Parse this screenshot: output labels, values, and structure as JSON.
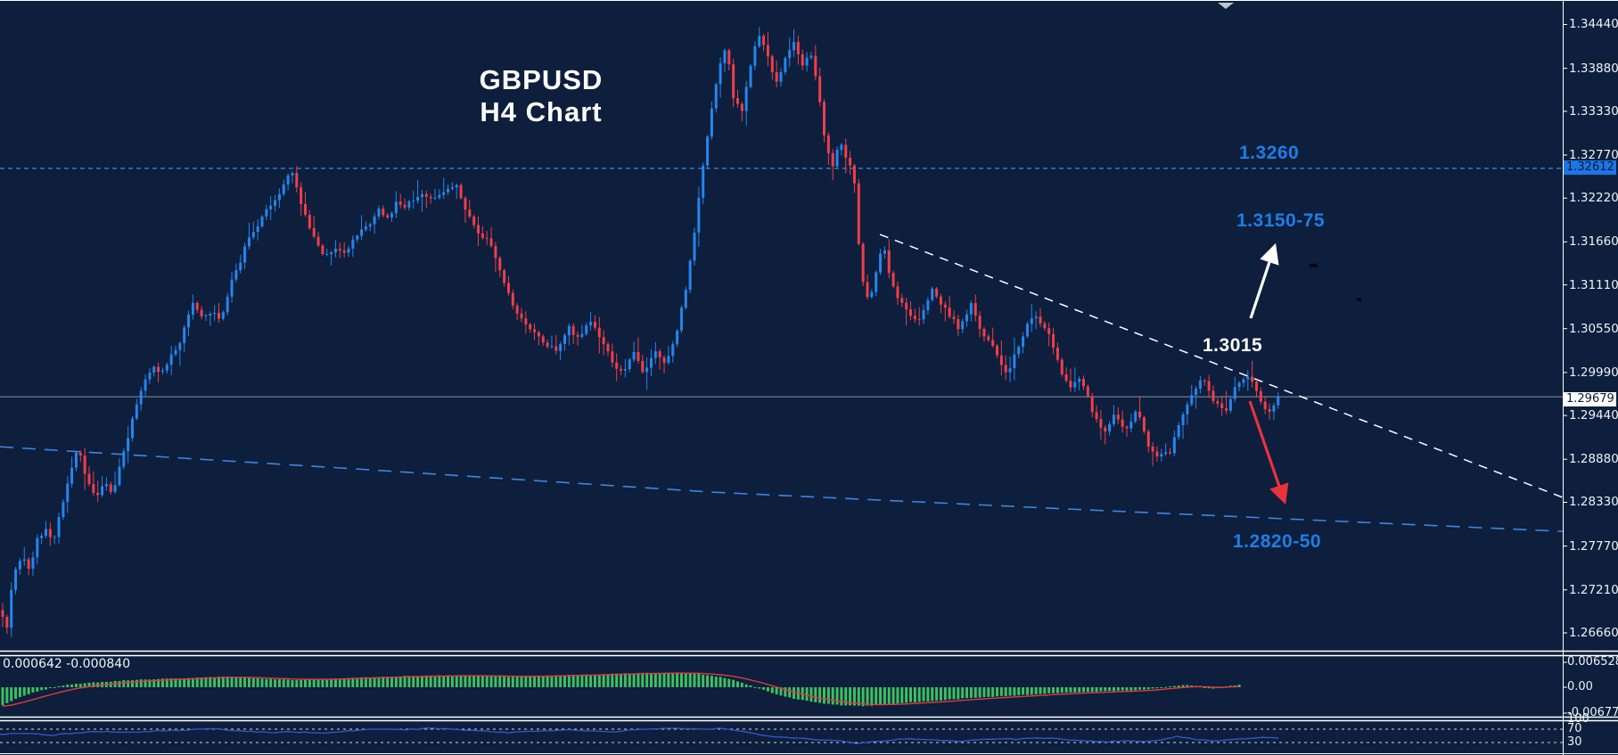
{
  "title": {
    "line1": "GBPUSD",
    "line2": "H4 Chart"
  },
  "annotations": {
    "resistance": "1.3260",
    "target_up": "1.3150-75",
    "pivot": "1.3015",
    "target_down": "1.2820-50"
  },
  "price_axis": {
    "ticks": [
      "1.34440",
      "1.33880",
      "1.33330",
      "1.32770",
      "1.32220",
      "1.31660",
      "1.31110",
      "1.30550",
      "1.29990",
      "1.29440",
      "1.28880",
      "1.28330",
      "1.27770",
      "1.27210",
      "1.26660"
    ],
    "tick_values": [
      1.3444,
      1.3388,
      1.3333,
      1.3277,
      1.3222,
      1.3166,
      1.3111,
      1.3055,
      1.2999,
      1.2944,
      1.2888,
      1.2833,
      1.2777,
      1.2721,
      1.2666
    ],
    "tag_resistance": "1.32612",
    "tag_resistance_value": 1.32612,
    "tag_current": "1.29679",
    "tag_current_value": 1.29679
  },
  "macd_panel": {
    "values_label": "0.000642 -0.000840",
    "axis_labels": [
      "0.006528",
      "0.00",
      "-0.006775"
    ],
    "axis_values": [
      0.006528,
      0.0,
      -0.006775
    ]
  },
  "oscillator_panel": {
    "axis_labels": [
      "100",
      "70",
      "30"
    ],
    "axis_values": [
      100,
      70,
      30
    ]
  },
  "colors": {
    "background": "#0d1f3c",
    "candle_up": "#2585ee",
    "candle_down": "#ef3e4a",
    "macd_bar": "#3dc05f",
    "macd_signal": "#e0393f",
    "oscillator_line": "#3a55cf",
    "accent_blue": "#1d7ee8",
    "ma_dashed": "#3d85e0",
    "resistance_dashed": "#3d85e0",
    "current_price_line": "#8a93a5",
    "trendline": "#ffffff",
    "arrow_up": "#ffffff",
    "arrow_down": "#e8323c",
    "separator": "#ffffff",
    "axis_text": "#eef2f6"
  },
  "chart_data": [
    {
      "type": "candlestick",
      "title": "GBPUSD H4 Chart",
      "symbol": "GBPUSD",
      "timeframe": "H4",
      "ylim": [
        1.26432,
        1.34753
      ],
      "current_close": 1.29679,
      "resistance_level": 1.326,
      "legend_position": "none",
      "close_path": [
        [
          0,
          1.2695
        ],
        [
          8,
          1.2672
        ],
        [
          15,
          1.2745
        ],
        [
          25,
          1.2762
        ],
        [
          33,
          1.2748
        ],
        [
          42,
          1.2786
        ],
        [
          52,
          1.2801
        ],
        [
          60,
          1.2783
        ],
        [
          68,
          1.2822
        ],
        [
          78,
          1.2868
        ],
        [
          88,
          1.2906
        ],
        [
          97,
          1.2863
        ],
        [
          107,
          1.2839
        ],
        [
          117,
          1.2859
        ],
        [
          127,
          1.2843
        ],
        [
          137,
          1.2891
        ],
        [
          147,
          1.2931
        ],
        [
          155,
          1.2966
        ],
        [
          163,
          1.2991
        ],
        [
          172,
          1.3006
        ],
        [
          182,
          1.2999
        ],
        [
          192,
          1.3021
        ],
        [
          202,
          1.3036
        ],
        [
          210,
          1.3071
        ],
        [
          218,
          1.3089
        ],
        [
          228,
          1.3066
        ],
        [
          238,
          1.3079
        ],
        [
          248,
          1.3066
        ],
        [
          258,
          1.3111
        ],
        [
          268,
          1.3136
        ],
        [
          278,
          1.3169
        ],
        [
          288,
          1.3186
        ],
        [
          298,
          1.3204
        ],
        [
          308,
          1.3216
        ],
        [
          318,
          1.3241
        ],
        [
          328,
          1.3256
        ],
        [
          336,
          1.3223
        ],
        [
          345,
          1.3191
        ],
        [
          355,
          1.3169
        ],
        [
          365,
          1.3146
        ],
        [
          375,
          1.3159
        ],
        [
          385,
          1.3151
        ],
        [
          395,
          1.3166
        ],
        [
          405,
          1.3181
        ],
        [
          415,
          1.3191
        ],
        [
          425,
          1.3206
        ],
        [
          435,
          1.3196
        ],
        [
          445,
          1.3216
        ],
        [
          455,
          1.3211
        ],
        [
          465,
          1.3223
        ],
        [
          475,
          1.3229
        ],
        [
          487,
          1.3219
        ],
        [
          500,
          1.3233
        ],
        [
          512,
          1.3239
        ],
        [
          525,
          1.3201
        ],
        [
          538,
          1.3176
        ],
        [
          550,
          1.3166
        ],
        [
          562,
          1.3126
        ],
        [
          575,
          1.3086
        ],
        [
          588,
          1.3061
        ],
        [
          600,
          1.3049
        ],
        [
          612,
          1.3033
        ],
        [
          625,
          1.3029
        ],
        [
          638,
          1.3056
        ],
        [
          650,
          1.3039
        ],
        [
          662,
          1.3066
        ],
        [
          675,
          1.3041
        ],
        [
          688,
          1.3009
        ],
        [
          700,
          1.3001
        ],
        [
          710,
          1.3026
        ],
        [
          722,
          1.2999
        ],
        [
          735,
          1.3029
        ],
        [
          747,
          1.3009
        ],
        [
          760,
          1.3056
        ],
        [
          772,
          1.3121
        ],
        [
          785,
          1.3231
        ],
        [
          797,
          1.3331
        ],
        [
          808,
          1.3396
        ],
        [
          815,
          1.3421
        ],
        [
          823,
          1.3346
        ],
        [
          832,
          1.3333
        ],
        [
          842,
          1.3391
        ],
        [
          850,
          1.3433
        ],
        [
          860,
          1.3406
        ],
        [
          870,
          1.3366
        ],
        [
          880,
          1.3396
        ],
        [
          890,
          1.3421
        ],
        [
          900,
          1.3393
        ],
        [
          910,
          1.3406
        ],
        [
          918,
          1.3356
        ],
        [
          926,
          1.3291
        ],
        [
          934,
          1.3263
        ],
        [
          942,
          1.3296
        ],
        [
          950,
          1.3271
        ],
        [
          958,
          1.3249
        ],
        [
          966,
          1.3121
        ],
        [
          975,
          1.3086
        ],
        [
          984,
          1.3136
        ],
        [
          990,
          1.3166
        ],
        [
          1000,
          1.3111
        ],
        [
          1015,
          1.3081
        ],
        [
          1030,
          1.3061
        ],
        [
          1045,
          1.3106
        ],
        [
          1060,
          1.3081
        ],
        [
          1075,
          1.3056
        ],
        [
          1090,
          1.3086
        ],
        [
          1100,
          1.3051
        ],
        [
          1115,
          1.3031
        ],
        [
          1130,
          1.2996
        ],
        [
          1145,
          1.3041
        ],
        [
          1160,
          1.3076
        ],
        [
          1175,
          1.3051
        ],
        [
          1190,
          1.3001
        ],
        [
          1200,
          1.2976
        ],
        [
          1212,
          1.2996
        ],
        [
          1225,
          1.2951
        ],
        [
          1238,
          1.2921
        ],
        [
          1250,
          1.2946
        ],
        [
          1262,
          1.2926
        ],
        [
          1275,
          1.2951
        ],
        [
          1288,
          1.2906
        ],
        [
          1300,
          1.2891
        ],
        [
          1312,
          1.2896
        ],
        [
          1325,
          1.2941
        ],
        [
          1338,
          1.2971
        ],
        [
          1350,
          1.2994
        ],
        [
          1362,
          1.2961
        ],
        [
          1375,
          1.2946
        ],
        [
          1388,
          1.2986
        ],
        [
          1400,
          1.2996
        ],
        [
          1412,
          1.2966
        ],
        [
          1425,
          1.2946
        ],
        [
          1435,
          1.29679
        ]
      ],
      "ma_dashed_path": [
        [
          0,
          1.2904
        ],
        [
          400,
          1.28756
        ],
        [
          800,
          1.28459
        ],
        [
          1200,
          1.28243
        ],
        [
          1753,
          1.27958
        ]
      ],
      "trendline_path": [
        [
          987,
          1.31755
        ],
        [
          1753,
          1.28392
        ]
      ]
    },
    {
      "type": "bar",
      "name": "MACD",
      "current_macd": 0.000642,
      "current_signal": -0.00084,
      "ylim": [
        -0.0077,
        0.00816
      ],
      "macd_waypoints": [
        [
          0,
          -0.005
        ],
        [
          20,
          -0.0028
        ],
        [
          40,
          -0.0012
        ],
        [
          60,
          0.0
        ],
        [
          80,
          0.0008
        ],
        [
          110,
          0.0013
        ],
        [
          140,
          0.0018
        ],
        [
          170,
          0.0021
        ],
        [
          200,
          0.0023
        ],
        [
          230,
          0.0026
        ],
        [
          250,
          0.0028
        ],
        [
          270,
          0.0026
        ],
        [
          300,
          0.0022
        ],
        [
          330,
          0.0019
        ],
        [
          360,
          0.0021
        ],
        [
          390,
          0.0024
        ],
        [
          420,
          0.0027
        ],
        [
          450,
          0.0029
        ],
        [
          480,
          0.003
        ],
        [
          510,
          0.0031
        ],
        [
          540,
          0.003
        ],
        [
          570,
          0.0028
        ],
        [
          600,
          0.0029
        ],
        [
          630,
          0.0031
        ],
        [
          660,
          0.0033
        ],
        [
          690,
          0.0035
        ],
        [
          720,
          0.0037
        ],
        [
          750,
          0.0038
        ],
        [
          780,
          0.0036
        ],
        [
          800,
          0.003
        ],
        [
          820,
          0.0022
        ],
        [
          835,
          0.001
        ],
        [
          850,
          -0.0002
        ],
        [
          870,
          -0.0018
        ],
        [
          890,
          -0.003
        ],
        [
          910,
          -0.0038
        ],
        [
          930,
          -0.0044
        ],
        [
          950,
          -0.0048
        ],
        [
          970,
          -0.0049
        ],
        [
          990,
          -0.0046
        ],
        [
          1010,
          -0.0042
        ],
        [
          1030,
          -0.0038
        ],
        [
          1060,
          -0.0033
        ],
        [
          1090,
          -0.0028
        ],
        [
          1120,
          -0.0024
        ],
        [
          1150,
          -0.002
        ],
        [
          1180,
          -0.0016
        ],
        [
          1210,
          -0.0013
        ],
        [
          1240,
          -0.0011
        ],
        [
          1270,
          -0.0008
        ],
        [
          1290,
          -0.0005
        ],
        [
          1310,
          0.0002
        ],
        [
          1330,
          0.0006
        ],
        [
          1345,
          0.0004
        ],
        [
          1360,
          -0.0004
        ],
        [
          1375,
          0.0002
        ],
        [
          1390,
          0.00064
        ]
      ]
    },
    {
      "type": "line",
      "name": "oscillator",
      "levels": [
        100,
        70,
        30
      ],
      "waypoints": [
        [
          0,
          55
        ],
        [
          30,
          58
        ],
        [
          60,
          52
        ],
        [
          90,
          60
        ],
        [
          120,
          63
        ],
        [
          150,
          60
        ],
        [
          180,
          65
        ],
        [
          210,
          68
        ],
        [
          240,
          71
        ],
        [
          270,
          65
        ],
        [
          300,
          60
        ],
        [
          330,
          62
        ],
        [
          360,
          58
        ],
        [
          390,
          65
        ],
        [
          420,
          70
        ],
        [
          450,
          68
        ],
        [
          480,
          72
        ],
        [
          510,
          70
        ],
        [
          540,
          65
        ],
        [
          570,
          60
        ],
        [
          600,
          63
        ],
        [
          630,
          68
        ],
        [
          660,
          65
        ],
        [
          690,
          62
        ],
        [
          720,
          70
        ],
        [
          750,
          72
        ],
        [
          780,
          70
        ],
        [
          810,
          72
        ],
        [
          840,
          60
        ],
        [
          860,
          50
        ],
        [
          880,
          45
        ],
        [
          900,
          42
        ],
        [
          920,
          38
        ],
        [
          940,
          35
        ],
        [
          960,
          28
        ],
        [
          980,
          32
        ],
        [
          1000,
          38
        ],
        [
          1020,
          42
        ],
        [
          1040,
          40
        ],
        [
          1060,
          36
        ],
        [
          1080,
          34
        ],
        [
          1100,
          38
        ],
        [
          1120,
          42
        ],
        [
          1140,
          40
        ],
        [
          1160,
          45
        ],
        [
          1180,
          42
        ],
        [
          1200,
          38
        ],
        [
          1220,
          35
        ],
        [
          1240,
          32
        ],
        [
          1260,
          35
        ],
        [
          1280,
          33
        ],
        [
          1300,
          36
        ],
        [
          1320,
          48
        ],
        [
          1340,
          40
        ],
        [
          1360,
          35
        ],
        [
          1380,
          38
        ],
        [
          1400,
          42
        ],
        [
          1420,
          45
        ],
        [
          1435,
          44
        ]
      ]
    }
  ]
}
